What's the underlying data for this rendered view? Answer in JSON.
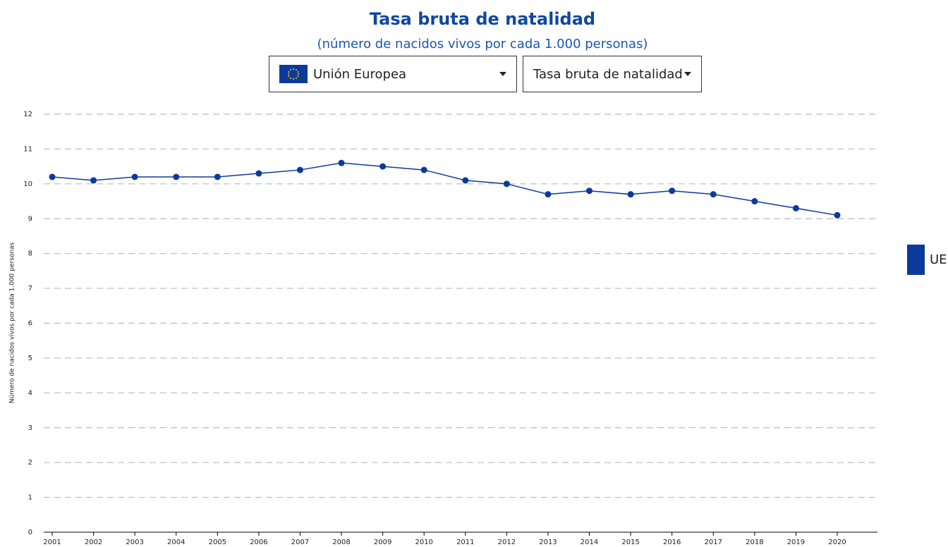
{
  "controls": {
    "country": "Unión Europea",
    "indicator": "Tasa bruta de natalidad"
  },
  "chart_data": {
    "type": "line",
    "title": "Tasa bruta de natalidad",
    "subtitle": "(número de nacidos vivos por cada 1.000 personas)",
    "y_label": "Número de nacidos vivos por cada 1.000 personas",
    "categories": [
      "2001",
      "2002",
      "2003",
      "2004",
      "2005",
      "2006",
      "2007",
      "2008",
      "2009",
      "2010",
      "2011",
      "2012",
      "2013",
      "2014",
      "2015",
      "2016",
      "2017",
      "2018",
      "2019",
      "2020"
    ],
    "series": [
      {
        "name": "UE",
        "color": "#0b3a9c",
        "values": [
          10.2,
          10.1,
          10.2,
          10.2,
          10.2,
          10.3,
          10.4,
          10.6,
          10.5,
          10.4,
          10.1,
          10.0,
          9.7,
          9.8,
          9.7,
          9.8,
          9.7,
          9.5,
          9.3,
          9.1
        ]
      }
    ],
    "ylim": [
      0,
      12
    ],
    "yticks": [
      0,
      1,
      2,
      3,
      4,
      5,
      6,
      7,
      8,
      9,
      10,
      11,
      12
    ],
    "grid": true,
    "legend": "right"
  }
}
